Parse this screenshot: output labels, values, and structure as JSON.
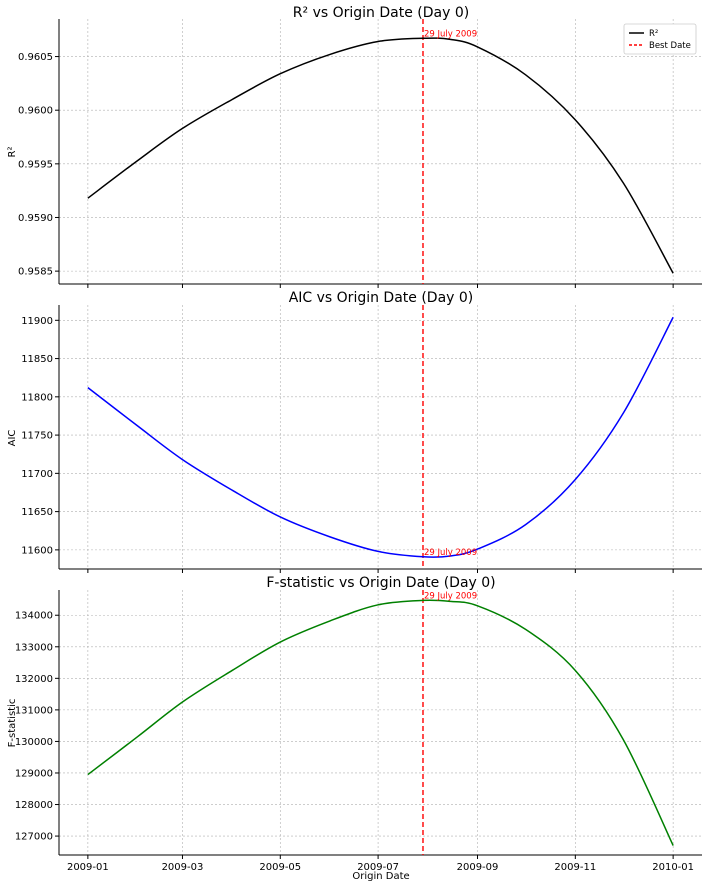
{
  "annotation_color": "#ff0000",
  "legend": {
    "entries": [
      {
        "label": "R²",
        "color": "#000000",
        "dashed": false
      },
      {
        "label": "Best Date",
        "color": "#ff0000",
        "dashed": true
      }
    ]
  },
  "chart_data": [
    {
      "type": "line",
      "title": "R² vs Origin Date (Day 0)",
      "ylabel": "R²",
      "xlabel": "",
      "color": "#000000",
      "ylim": [
        0.95838,
        0.96085
      ],
      "yticks": [
        0.9585,
        0.959,
        0.9595,
        0.96,
        0.9605
      ],
      "ytick_labels": [
        "0.9585",
        "0.9590",
        "0.9595",
        "0.9600",
        "0.9605"
      ],
      "show_xtick_labels": false,
      "grid": true,
      "legend": "top-right",
      "best_date": "2009-07-29",
      "annotation": "29 July 2009",
      "annotation_pos": "top",
      "x": [
        "2009-01-01",
        "2009-02-01",
        "2009-03-01",
        "2009-04-01",
        "2009-05-01",
        "2009-06-01",
        "2009-07-01",
        "2009-07-29",
        "2009-08-15",
        "2009-09-01",
        "2009-10-01",
        "2009-11-01",
        "2009-12-01",
        "2010-01-01"
      ],
      "y": [
        0.95918,
        0.95953,
        0.95983,
        0.9601,
        0.96034,
        0.96052,
        0.96064,
        0.96067,
        0.96066,
        0.96059,
        0.96033,
        0.95991,
        0.95932,
        0.95848
      ]
    },
    {
      "type": "line",
      "title": "AIC vs Origin Date (Day 0)",
      "ylabel": "AIC",
      "xlabel": "",
      "color": "#0000ff",
      "ylim": [
        11575,
        11920
      ],
      "yticks": [
        11600,
        11650,
        11700,
        11750,
        11800,
        11850,
        11900
      ],
      "ytick_labels": [
        "11600",
        "11650",
        "11700",
        "11750",
        "11800",
        "11850",
        "11900"
      ],
      "show_xtick_labels": false,
      "grid": true,
      "best_date": "2009-07-29",
      "annotation": "29 July 2009",
      "annotation_pos": "bottom",
      "x": [
        "2009-01-01",
        "2009-02-01",
        "2009-03-01",
        "2009-04-01",
        "2009-05-01",
        "2009-06-01",
        "2009-07-01",
        "2009-07-29",
        "2009-08-15",
        "2009-09-01",
        "2009-10-01",
        "2009-11-01",
        "2009-12-01",
        "2010-01-01"
      ],
      "y": [
        11812,
        11762,
        11718,
        11678,
        11643,
        11617,
        11598,
        11591,
        11592,
        11601,
        11633,
        11692,
        11779,
        11904
      ]
    },
    {
      "type": "line",
      "title": "F-statistic vs Origin Date (Day 0)",
      "ylabel": "F-statistic",
      "xlabel": "Origin Date",
      "color": "#008000",
      "ylim": [
        126400,
        134800
      ],
      "yticks": [
        127000,
        128000,
        129000,
        130000,
        131000,
        132000,
        133000,
        134000
      ],
      "ytick_labels": [
        "127000",
        "128000",
        "129000",
        "130000",
        "131000",
        "132000",
        "133000",
        "134000"
      ],
      "show_xtick_labels": true,
      "grid": true,
      "best_date": "2009-07-29",
      "annotation": "29 July 2009",
      "annotation_pos": "top",
      "x": [
        "2009-01-01",
        "2009-02-01",
        "2009-03-01",
        "2009-04-01",
        "2009-05-01",
        "2009-06-01",
        "2009-07-01",
        "2009-07-29",
        "2009-08-15",
        "2009-09-01",
        "2009-10-01",
        "2009-11-01",
        "2009-12-01",
        "2010-01-01"
      ],
      "y": [
        128950,
        130150,
        131250,
        132250,
        133150,
        133820,
        134330,
        134470,
        134440,
        134300,
        133550,
        132250,
        130050,
        126700
      ]
    }
  ],
  "xaxis": {
    "range": [
      "2008-12-14",
      "2010-01-19"
    ],
    "ticks": [
      "2009-01-01",
      "2009-03-01",
      "2009-05-01",
      "2009-07-01",
      "2009-09-01",
      "2009-11-01",
      "2010-01-01"
    ],
    "tick_labels": [
      "2009-01",
      "2009-03",
      "2009-05",
      "2009-07",
      "2009-09",
      "2009-11",
      "2010-01"
    ]
  }
}
